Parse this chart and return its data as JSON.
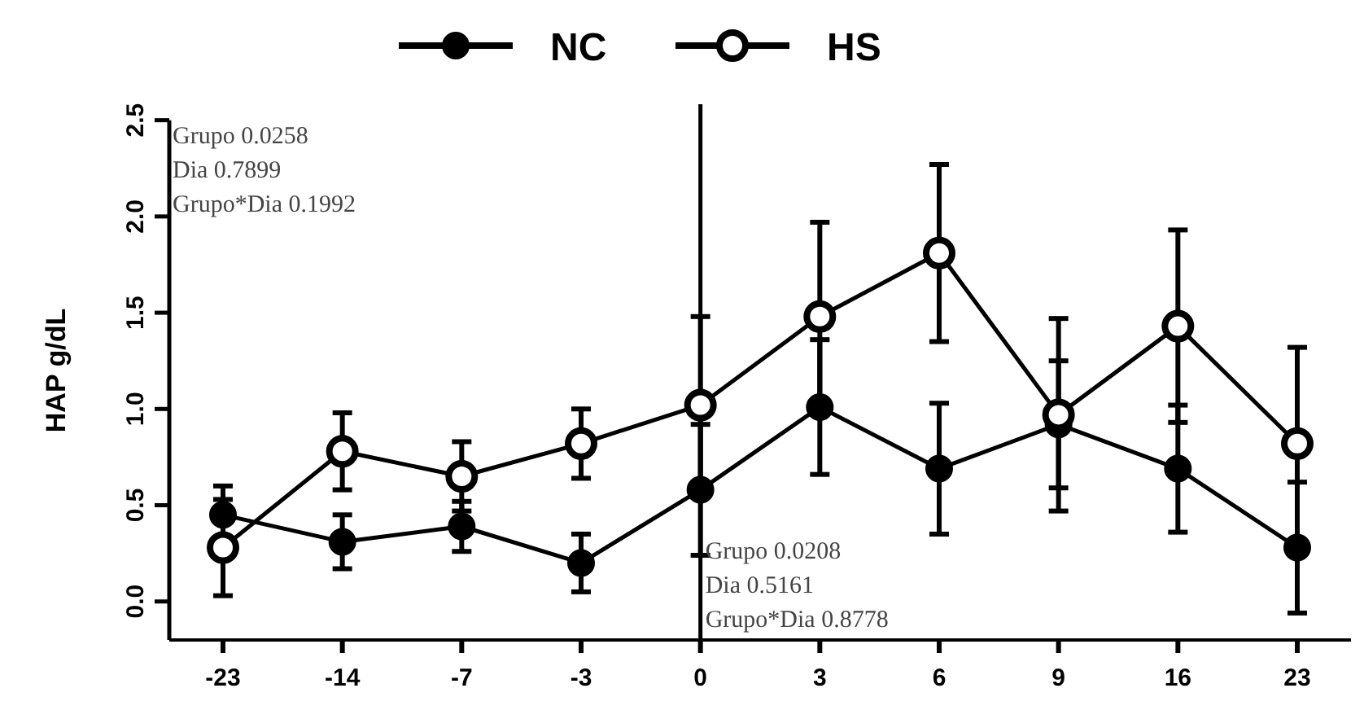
{
  "chart_data": {
    "type": "line",
    "ylabel": "HAP g/dL",
    "categories": [
      "-23",
      "-14",
      "-7",
      "-3",
      "0",
      "3",
      "6",
      "9",
      "16",
      "23"
    ],
    "ylim": [
      -0.2,
      2.6
    ],
    "yticks": [
      {
        "value": 0,
        "label": "0.0"
      },
      0.5,
      {
        "value": 1,
        "label": "1.0"
      },
      1.5,
      {
        "value": 2,
        "label": "2.0"
      },
      2.5
    ],
    "series": [
      {
        "name": "NC",
        "color": "#000000",
        "marker": "circle",
        "values": [
          0.45,
          0.31,
          0.39,
          0.2,
          0.58,
          1.01,
          0.69,
          0.92,
          0.69,
          0.28
        ],
        "errors": [
          0.15,
          0.14,
          0.13,
          0.15,
          0.34,
          0.35,
          0.34,
          0.33,
          0.33,
          0.34
        ]
      },
      {
        "name": "HS",
        "color": "#000000",
        "marker": "circle",
        "values": [
          0.28,
          0.78,
          0.65,
          0.82,
          1.02,
          1.48,
          1.81,
          0.97,
          1.43,
          0.82
        ],
        "errors": [
          0.25,
          0.2,
          0.18,
          0.18,
          0.46,
          0.49,
          0.46,
          0.5,
          0.5,
          0.5
        ]
      }
    ],
    "ref_lines": [
      {
        "axis": "x",
        "value": "0",
        "color": "#000000"
      }
    ],
    "annotations": [
      "Grupo 0.0258\nDia 0.7899\nGrupo*Dia 0.1992",
      "Grupo 0.0208\nDia 0.5161\nGrupo*Dia 0.8778"
    ],
    "legend": "top",
    "grid": false
  }
}
